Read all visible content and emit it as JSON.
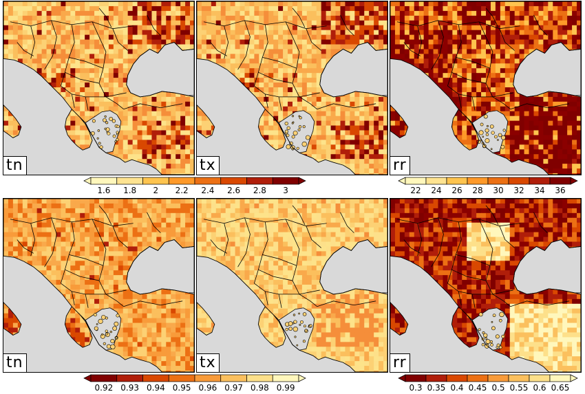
{
  "figure": {
    "panels": [
      {
        "id": "p1",
        "label": "tn",
        "row": "top",
        "scheme": "warm-max"
      },
      {
        "id": "p2",
        "label": "tx",
        "row": "top",
        "scheme": "warm-max"
      },
      {
        "id": "p3",
        "label": "rr",
        "row": "top",
        "scheme": "hot-max"
      },
      {
        "id": "p4",
        "label": "tn",
        "row": "bottom",
        "scheme": "ratio"
      },
      {
        "id": "p5",
        "label": "tx",
        "row": "bottom",
        "scheme": "ratio-pale"
      },
      {
        "id": "p6",
        "label": "rr",
        "row": "bottom",
        "scheme": "corr"
      }
    ],
    "colorbars": [
      {
        "id": "cb-temp-top",
        "ticks": [
          "1.6",
          "1.8",
          "2",
          "2.2",
          "2.4",
          "2.6",
          "2.8",
          "3"
        ],
        "colors": [
          "#fff7bc",
          "#fee391",
          "#fec44f",
          "#fe9929",
          "#ec7014",
          "#d94801",
          "#b01e0a",
          "#800000"
        ]
      },
      {
        "id": "cb-rr-top",
        "ticks": [
          "22",
          "24",
          "26",
          "28",
          "30",
          "32",
          "34",
          "36"
        ],
        "colors": [
          "#fff7bc",
          "#fee391",
          "#fec44f",
          "#fe9929",
          "#ec7014",
          "#d94801",
          "#b01e0a",
          "#800000"
        ]
      },
      {
        "id": "cb-ratio-bottom",
        "ticks": [
          "0.92",
          "0.93",
          "0.94",
          "0.95",
          "0.96",
          "0.97",
          "0.98",
          "0.99"
        ],
        "colors": [
          "#800000",
          "#b01e0a",
          "#d94801",
          "#ec7014",
          "#f89b3a",
          "#fbc05e",
          "#fde08a",
          "#fff7bc"
        ]
      },
      {
        "id": "cb-corr-bottom",
        "ticks": [
          "0.3",
          "0.35",
          "0.4",
          "0.45",
          "0.5",
          "0.55",
          "0.6",
          "0.65"
        ],
        "colors": [
          "#800000",
          "#b01e0a",
          "#d94801",
          "#ec7014",
          "#f89b3a",
          "#fbc05e",
          "#fde08a",
          "#fff7bc"
        ]
      }
    ],
    "colors": {
      "sea": "#d9d9d9",
      "border": "#000000"
    }
  }
}
